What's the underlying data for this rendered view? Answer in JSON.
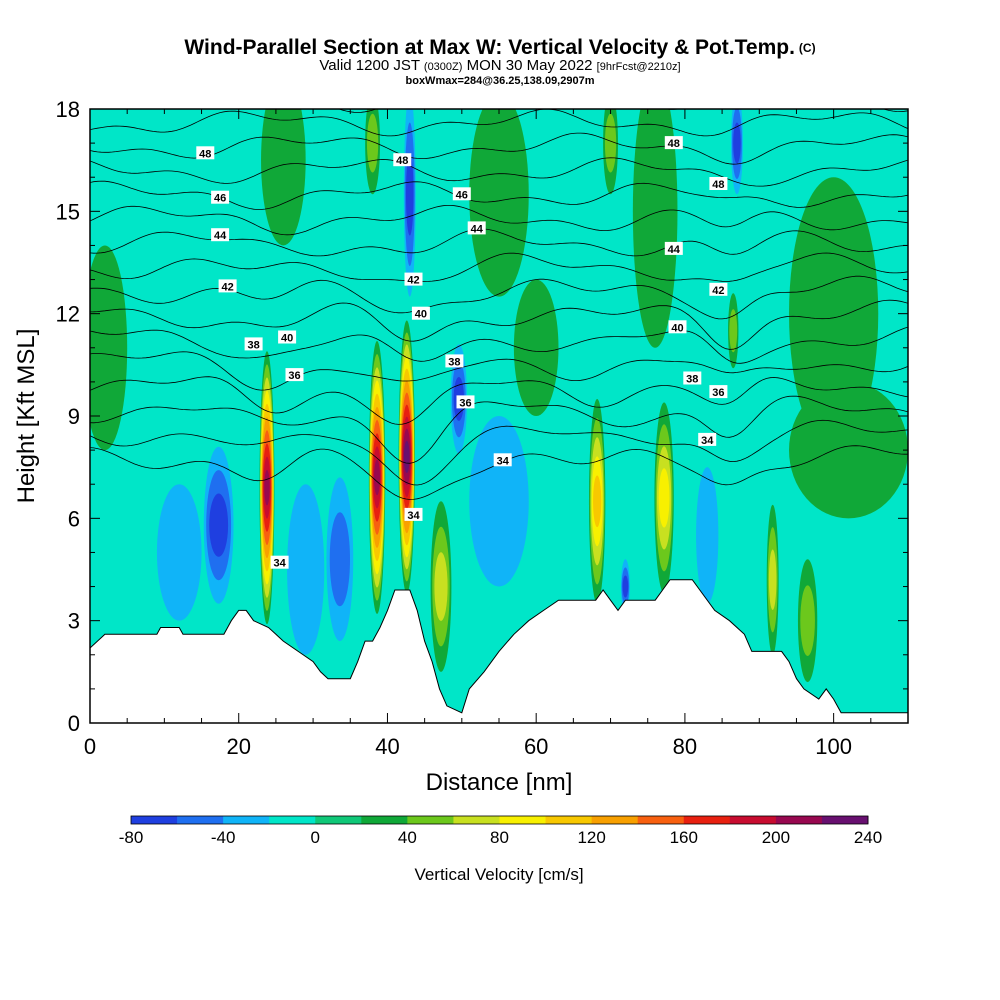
{
  "header": {
    "title": "Wind-Parallel Section at Max W: Vertical Velocity & Pot.Temp.",
    "title_mark": "(C)",
    "valid_prefix": "Valid 1200 JST",
    "valid_utc": "(0300Z)",
    "valid_date": "MON 30 May 2022",
    "forecast_info": "[9hrFcst@2210z]",
    "box_info": "boxWmax=284@36.25,138.09,2907m"
  },
  "chart_data": {
    "type": "heatmap",
    "xlabel": "Distance [nm]",
    "ylabel": "Height [Kft MSL]",
    "xlim": [
      0,
      110
    ],
    "ylim": [
      0,
      18
    ],
    "x_ticks": [
      0,
      20,
      40,
      60,
      80,
      100
    ],
    "y_ticks": [
      0,
      3,
      6,
      9,
      12,
      15,
      18
    ],
    "colorbar": {
      "title": "Vertical Velocity [cm/s]",
      "levels": [
        -80,
        -60,
        -40,
        -20,
        0,
        20,
        40,
        60,
        80,
        100,
        120,
        140,
        160,
        180,
        200,
        220,
        240
      ],
      "tick_labels": [
        "-80",
        "-40",
        "0",
        "40",
        "80",
        "120",
        "160",
        "200",
        "240"
      ],
      "colors": [
        "#1f3fe0",
        "#1f6ff0",
        "#10b4f8",
        "#00e6c8",
        "#10c878",
        "#10a838",
        "#6cc81c",
        "#c8e020",
        "#f8f000",
        "#f8c800",
        "#f8a000",
        "#f86010",
        "#e82010",
        "#c80c30",
        "#980850",
        "#681070"
      ]
    },
    "background_color": "#00e6c8",
    "terrain": [
      {
        "x": 0,
        "h": 2.2
      },
      {
        "x": 2,
        "h": 2.6
      },
      {
        "x": 9,
        "h": 2.6
      },
      {
        "x": 9.5,
        "h": 2.8
      },
      {
        "x": 12,
        "h": 2.8
      },
      {
        "x": 12.5,
        "h": 2.6
      },
      {
        "x": 18,
        "h": 2.6
      },
      {
        "x": 18.5,
        "h": 2.8
      },
      {
        "x": 19,
        "h": 3.0
      },
      {
        "x": 20,
        "h": 3.3
      },
      {
        "x": 21,
        "h": 3.3
      },
      {
        "x": 22,
        "h": 3.0
      },
      {
        "x": 24,
        "h": 2.8
      },
      {
        "x": 25,
        "h": 2.6
      },
      {
        "x": 26,
        "h": 2.4
      },
      {
        "x": 28,
        "h": 2.1
      },
      {
        "x": 30,
        "h": 1.8
      },
      {
        "x": 31,
        "h": 1.5
      },
      {
        "x": 32,
        "h": 1.3
      },
      {
        "x": 35,
        "h": 1.3
      },
      {
        "x": 36,
        "h": 1.8
      },
      {
        "x": 37,
        "h": 2.4
      },
      {
        "x": 38,
        "h": 2.4
      },
      {
        "x": 39,
        "h": 2.8
      },
      {
        "x": 40,
        "h": 3.3
      },
      {
        "x": 41,
        "h": 3.9
      },
      {
        "x": 43,
        "h": 3.9
      },
      {
        "x": 44,
        "h": 3.3
      },
      {
        "x": 45,
        "h": 2.4
      },
      {
        "x": 46,
        "h": 1.8
      },
      {
        "x": 47,
        "h": 1.0
      },
      {
        "x": 48,
        "h": 0.5
      },
      {
        "x": 50,
        "h": 0.3
      },
      {
        "x": 51,
        "h": 1.0
      },
      {
        "x": 53,
        "h": 1.5
      },
      {
        "x": 55,
        "h": 2.1
      },
      {
        "x": 57,
        "h": 2.6
      },
      {
        "x": 59,
        "h": 3.0
      },
      {
        "x": 61,
        "h": 3.3
      },
      {
        "x": 63,
        "h": 3.6
      },
      {
        "x": 66,
        "h": 3.6
      },
      {
        "x": 68,
        "h": 3.6
      },
      {
        "x": 69,
        "h": 3.9
      },
      {
        "x": 70,
        "h": 3.6
      },
      {
        "x": 71,
        "h": 3.3
      },
      {
        "x": 72,
        "h": 3.6
      },
      {
        "x": 76,
        "h": 3.6
      },
      {
        "x": 77,
        "h": 3.9
      },
      {
        "x": 78,
        "h": 4.2
      },
      {
        "x": 81,
        "h": 4.2
      },
      {
        "x": 82,
        "h": 3.9
      },
      {
        "x": 84,
        "h": 3.3
      },
      {
        "x": 86,
        "h": 3.0
      },
      {
        "x": 88,
        "h": 2.6
      },
      {
        "x": 89,
        "h": 2.1
      },
      {
        "x": 93,
        "h": 2.1
      },
      {
        "x": 94,
        "h": 1.8
      },
      {
        "x": 95,
        "h": 1.3
      },
      {
        "x": 96,
        "h": 1.0
      },
      {
        "x": 98,
        "h": 0.7
      },
      {
        "x": 99,
        "h": 1.0
      },
      {
        "x": 100,
        "h": 0.7
      },
      {
        "x": 101,
        "h": 0.3
      },
      {
        "x": 110,
        "h": 0.3
      }
    ],
    "velocity_features": [
      {
        "x": 23.8,
        "h": 6.9,
        "rx": 1.0,
        "rh": 4.0,
        "value": 200
      },
      {
        "x": 38.6,
        "h": 7.2,
        "rx": 1.1,
        "rh": 4.0,
        "value": 200
      },
      {
        "x": 42.6,
        "h": 7.8,
        "rx": 1.1,
        "rh": 4.0,
        "value": 230
      },
      {
        "x": 68.2,
        "h": 6.5,
        "rx": 1.1,
        "rh": 3.0,
        "value": 100
      },
      {
        "x": 77.2,
        "h": 6.6,
        "rx": 1.3,
        "rh": 2.8,
        "value": 90
      },
      {
        "x": 86.5,
        "h": 11.5,
        "rx": 0.7,
        "rh": 1.1,
        "value": 50
      },
      {
        "x": 47.2,
        "h": 4.0,
        "rx": 1.4,
        "rh": 2.5,
        "value": 60
      },
      {
        "x": 91.8,
        "h": 4.2,
        "rx": 0.8,
        "rh": 2.2,
        "value": 60
      },
      {
        "x": 96.5,
        "h": 3.0,
        "rx": 1.3,
        "rh": 1.8,
        "value": 40
      },
      {
        "x": 17.3,
        "h": 5.8,
        "rx": 2.0,
        "rh": 2.3,
        "value": -60
      },
      {
        "x": 33.6,
        "h": 4.8,
        "rx": 1.8,
        "rh": 2.4,
        "value": -50
      },
      {
        "x": 49.6,
        "h": 9.5,
        "rx": 1.1,
        "rh": 1.6,
        "value": -60
      },
      {
        "x": 43.0,
        "h": 15.5,
        "rx": 0.8,
        "rh": 3.0,
        "value": -60
      },
      {
        "x": 87.0,
        "h": 17.0,
        "rx": 0.8,
        "rh": 1.5,
        "value": -60
      },
      {
        "x": 72.0,
        "h": 4.0,
        "rx": 0.6,
        "rh": 0.8,
        "value": -60
      },
      {
        "x": 29.0,
        "h": 4.5,
        "rx": 2.5,
        "rh": 2.5,
        "value": -20
      },
      {
        "x": 55.0,
        "h": 6.5,
        "rx": 4.0,
        "rh": 2.5,
        "value": -20
      },
      {
        "x": 83.0,
        "h": 5.5,
        "rx": 1.5,
        "rh": 2.0,
        "value": -20
      },
      {
        "x": 12.0,
        "h": 5.0,
        "rx": 3.0,
        "rh": 2.0,
        "value": -20
      },
      {
        "x": 26.0,
        "h": 16.5,
        "rx": 3.0,
        "rh": 2.5,
        "value": 20
      },
      {
        "x": 55.0,
        "h": 15.5,
        "rx": 4.0,
        "rh": 3.0,
        "value": 20
      },
      {
        "x": 76.0,
        "h": 15.0,
        "rx": 3.0,
        "rh": 4.0,
        "value": 20
      },
      {
        "x": 2.0,
        "h": 11.0,
        "rx": 3.0,
        "rh": 3.0,
        "value": 20
      },
      {
        "x": 100.0,
        "h": 12.0,
        "rx": 6.0,
        "rh": 4.0,
        "value": 20
      },
      {
        "x": 102.0,
        "h": 8.0,
        "rx": 8.0,
        "rh": 2.0,
        "value": 20
      },
      {
        "x": 60.0,
        "h": 11.0,
        "rx": 3.0,
        "rh": 2.0,
        "value": 20
      },
      {
        "x": 38.0,
        "h": 17.0,
        "rx": 1.0,
        "rh": 1.5,
        "value": 40
      },
      {
        "x": 70.0,
        "h": 17.0,
        "rx": 1.0,
        "rh": 1.5,
        "value": 40
      }
    ],
    "theta_levels": [
      34,
      35,
      36,
      37,
      38,
      39,
      40,
      41,
      42,
      43,
      44,
      45,
      46,
      47,
      48,
      49
    ],
    "theta_labels": [
      {
        "text": "48",
        "x": 15.5,
        "h": 16.7
      },
      {
        "text": "48",
        "x": 42.0,
        "h": 16.5
      },
      {
        "text": "48",
        "x": 78.5,
        "h": 17.0
      },
      {
        "text": "48",
        "x": 84.5,
        "h": 15.8
      },
      {
        "text": "46",
        "x": 17.5,
        "h": 15.4
      },
      {
        "text": "46",
        "x": 50.0,
        "h": 15.5
      },
      {
        "text": "44",
        "x": 17.5,
        "h": 14.3
      },
      {
        "text": "44",
        "x": 52.0,
        "h": 14.5
      },
      {
        "text": "44",
        "x": 78.5,
        "h": 13.9
      },
      {
        "text": "42",
        "x": 18.5,
        "h": 12.8
      },
      {
        "text": "42",
        "x": 43.5,
        "h": 13.0
      },
      {
        "text": "42",
        "x": 84.5,
        "h": 12.7
      },
      {
        "text": "40",
        "x": 26.5,
        "h": 11.3
      },
      {
        "text": "40",
        "x": 44.5,
        "h": 12.0
      },
      {
        "text": "40",
        "x": 79.0,
        "h": 11.6
      },
      {
        "text": "38",
        "x": 22.0,
        "h": 11.1
      },
      {
        "text": "38",
        "x": 49.0,
        "h": 10.6
      },
      {
        "text": "38",
        "x": 81.0,
        "h": 10.1
      },
      {
        "text": "36",
        "x": 27.5,
        "h": 10.2
      },
      {
        "text": "36",
        "x": 50.5,
        "h": 9.4
      },
      {
        "text": "36",
        "x": 84.5,
        "h": 9.7
      },
      {
        "text": "34",
        "x": 55.5,
        "h": 7.7
      },
      {
        "text": "34",
        "x": 83.0,
        "h": 8.3
      },
      {
        "text": "34",
        "x": 43.5,
        "h": 6.1
      },
      {
        "text": "34",
        "x": 25.5,
        "h": 4.7
      }
    ]
  }
}
